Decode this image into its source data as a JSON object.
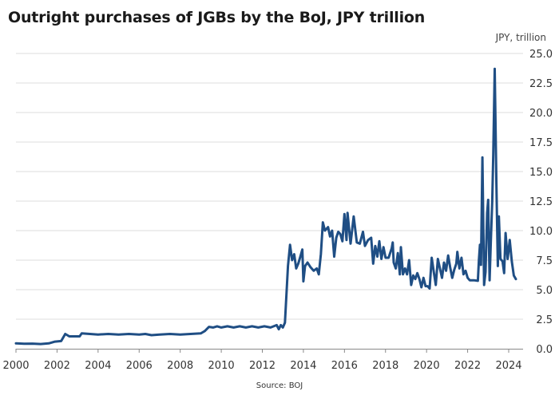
{
  "title": "Outright purchases of JGBs by the BoJ, JPY trillion",
  "source": "Source: BOJ",
  "chart_data": {
    "type": "line",
    "title": "Outright purchases of JGBs by the BoJ, JPY trillion",
    "ylabel": "JPY, trillion",
    "xlabel": "",
    "xlim": [
      2000,
      2024.7
    ],
    "ylim": [
      0,
      25
    ],
    "grid": true,
    "y_ticks": [
      "0.0",
      "2.5",
      "5.0",
      "7.5",
      "10.0",
      "12.5",
      "15.0",
      "17.5",
      "20.0",
      "22.5",
      "25.0"
    ],
    "x_ticks": [
      "2000",
      "2002",
      "2004",
      "2006",
      "2008",
      "2010",
      "2012",
      "2014",
      "2016",
      "2018",
      "2020",
      "2022",
      "2024"
    ],
    "color": "#1f4e84",
    "series": [
      {
        "points": [
          [
            2000.0,
            0.45
          ],
          [
            2000.4,
            0.42
          ],
          [
            2000.8,
            0.43
          ],
          [
            2001.2,
            0.4
          ],
          [
            2001.6,
            0.45
          ],
          [
            2001.9,
            0.6
          ],
          [
            2002.2,
            0.65
          ],
          [
            2002.4,
            1.25
          ],
          [
            2002.6,
            1.05
          ],
          [
            2002.9,
            1.05
          ],
          [
            2003.1,
            1.05
          ],
          [
            2003.2,
            1.3
          ],
          [
            2003.6,
            1.25
          ],
          [
            2004.0,
            1.2
          ],
          [
            2004.5,
            1.25
          ],
          [
            2005.0,
            1.2
          ],
          [
            2005.5,
            1.25
          ],
          [
            2006.0,
            1.2
          ],
          [
            2006.3,
            1.25
          ],
          [
            2006.6,
            1.15
          ],
          [
            2007.0,
            1.2
          ],
          [
            2007.5,
            1.25
          ],
          [
            2008.0,
            1.2
          ],
          [
            2008.5,
            1.25
          ],
          [
            2009.0,
            1.3
          ],
          [
            2009.2,
            1.5
          ],
          [
            2009.4,
            1.85
          ],
          [
            2009.6,
            1.8
          ],
          [
            2009.8,
            1.9
          ],
          [
            2010.0,
            1.8
          ],
          [
            2010.3,
            1.9
          ],
          [
            2010.6,
            1.8
          ],
          [
            2010.9,
            1.9
          ],
          [
            2011.2,
            1.8
          ],
          [
            2011.5,
            1.9
          ],
          [
            2011.8,
            1.8
          ],
          [
            2012.1,
            1.9
          ],
          [
            2012.4,
            1.8
          ],
          [
            2012.7,
            2.0
          ],
          [
            2012.8,
            1.65
          ],
          [
            2012.9,
            2.0
          ],
          [
            2013.0,
            1.8
          ],
          [
            2013.1,
            2.2
          ],
          [
            2013.25,
            7.0
          ],
          [
            2013.35,
            8.8
          ],
          [
            2013.45,
            7.5
          ],
          [
            2013.55,
            8.0
          ],
          [
            2013.65,
            6.8
          ],
          [
            2013.75,
            7.2
          ],
          [
            2013.85,
            7.8
          ],
          [
            2013.95,
            8.4
          ],
          [
            2014.0,
            5.7
          ],
          [
            2014.08,
            7.0
          ],
          [
            2014.2,
            7.3
          ],
          [
            2014.35,
            6.9
          ],
          [
            2014.5,
            6.6
          ],
          [
            2014.65,
            6.8
          ],
          [
            2014.75,
            6.3
          ],
          [
            2014.85,
            8.0
          ],
          [
            2014.95,
            10.7
          ],
          [
            2015.05,
            10.0
          ],
          [
            2015.2,
            10.3
          ],
          [
            2015.3,
            9.5
          ],
          [
            2015.4,
            10.0
          ],
          [
            2015.5,
            7.8
          ],
          [
            2015.6,
            9.4
          ],
          [
            2015.7,
            9.9
          ],
          [
            2015.8,
            9.7
          ],
          [
            2015.9,
            9.1
          ],
          [
            2016.0,
            11.4
          ],
          [
            2016.1,
            9.2
          ],
          [
            2016.15,
            11.5
          ],
          [
            2016.3,
            8.9
          ],
          [
            2016.45,
            11.2
          ],
          [
            2016.6,
            9.0
          ],
          [
            2016.75,
            8.9
          ],
          [
            2016.9,
            9.9
          ],
          [
            2017.0,
            8.7
          ],
          [
            2017.15,
            9.2
          ],
          [
            2017.3,
            9.4
          ],
          [
            2017.4,
            7.2
          ],
          [
            2017.5,
            8.7
          ],
          [
            2017.6,
            7.8
          ],
          [
            2017.7,
            9.1
          ],
          [
            2017.8,
            7.6
          ],
          [
            2017.9,
            8.6
          ],
          [
            2018.0,
            7.7
          ],
          [
            2018.15,
            7.7
          ],
          [
            2018.3,
            8.5
          ],
          [
            2018.35,
            9.0
          ],
          [
            2018.4,
            7.3
          ],
          [
            2018.5,
            6.8
          ],
          [
            2018.6,
            8.1
          ],
          [
            2018.7,
            6.3
          ],
          [
            2018.75,
            8.6
          ],
          [
            2018.85,
            6.3
          ],
          [
            2018.95,
            6.8
          ],
          [
            2019.05,
            6.3
          ],
          [
            2019.15,
            7.5
          ],
          [
            2019.25,
            5.4
          ],
          [
            2019.35,
            6.2
          ],
          [
            2019.45,
            5.9
          ],
          [
            2019.55,
            6.4
          ],
          [
            2019.65,
            5.9
          ],
          [
            2019.75,
            5.2
          ],
          [
            2019.85,
            6.0
          ],
          [
            2019.95,
            5.3
          ],
          [
            2020.05,
            5.3
          ],
          [
            2020.15,
            5.1
          ],
          [
            2020.25,
            7.7
          ],
          [
            2020.35,
            6.5
          ],
          [
            2020.45,
            5.4
          ],
          [
            2020.55,
            7.6
          ],
          [
            2020.65,
            6.8
          ],
          [
            2020.75,
            6.0
          ],
          [
            2020.85,
            7.3
          ],
          [
            2020.95,
            6.6
          ],
          [
            2021.05,
            7.9
          ],
          [
            2021.15,
            6.9
          ],
          [
            2021.25,
            6.0
          ],
          [
            2021.35,
            6.7
          ],
          [
            2021.45,
            7.2
          ],
          [
            2021.5,
            8.2
          ],
          [
            2021.6,
            6.8
          ],
          [
            2021.7,
            7.7
          ],
          [
            2021.8,
            6.3
          ],
          [
            2021.9,
            6.6
          ],
          [
            2022.0,
            6.0
          ],
          [
            2022.1,
            5.8
          ],
          [
            2022.3,
            5.8
          ],
          [
            2022.5,
            5.75
          ],
          [
            2022.55,
            7.5
          ],
          [
            2022.6,
            8.8
          ],
          [
            2022.65,
            7.1
          ],
          [
            2022.72,
            16.2
          ],
          [
            2022.8,
            5.4
          ],
          [
            2022.87,
            6.5
          ],
          [
            2022.95,
            11.5
          ],
          [
            2023.0,
            12.6
          ],
          [
            2023.07,
            5.8
          ],
          [
            2023.13,
            9.0
          ],
          [
            2023.2,
            12.5
          ],
          [
            2023.25,
            16.5
          ],
          [
            2023.32,
            23.7
          ],
          [
            2023.4,
            14.0
          ],
          [
            2023.47,
            7.0
          ],
          [
            2023.52,
            11.2
          ],
          [
            2023.6,
            7.6
          ],
          [
            2023.7,
            7.4
          ],
          [
            2023.78,
            6.4
          ],
          [
            2023.85,
            9.8
          ],
          [
            2023.95,
            7.6
          ],
          [
            2024.05,
            9.2
          ],
          [
            2024.15,
            7.4
          ],
          [
            2024.25,
            6.2
          ],
          [
            2024.35,
            5.9
          ]
        ]
      }
    ]
  }
}
